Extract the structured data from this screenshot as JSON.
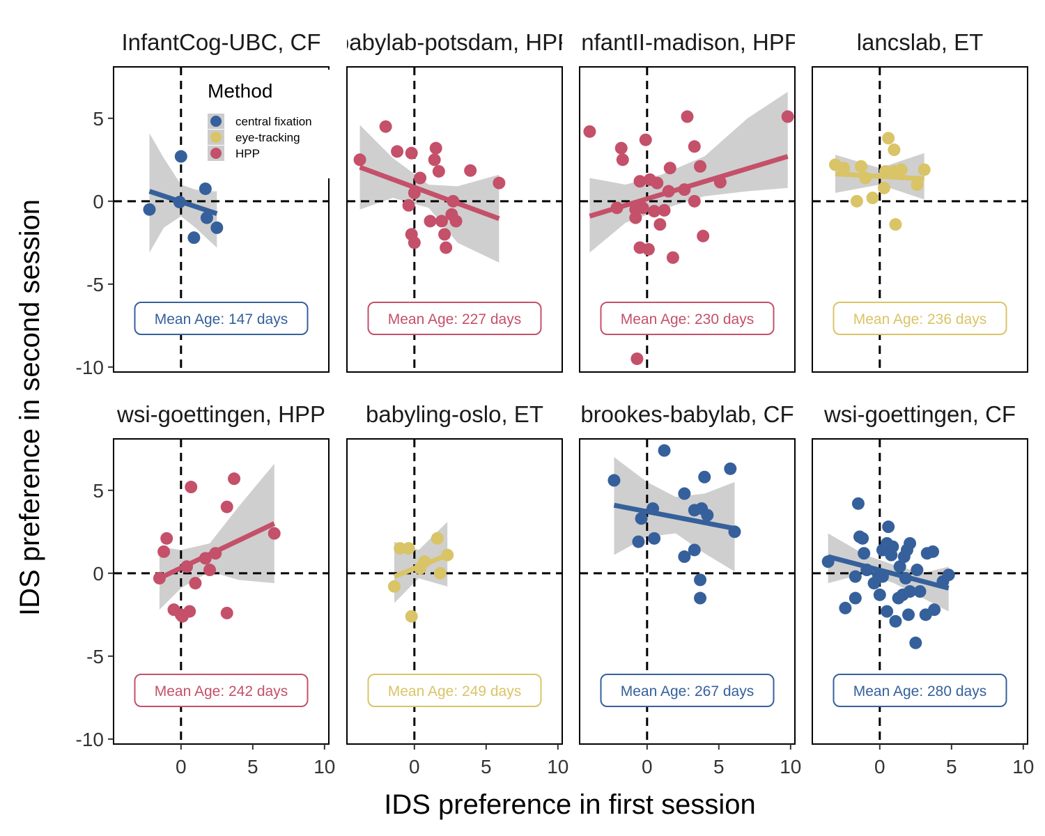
{
  "chart_data": {
    "type": "scatter",
    "xlabel": "IDS preference in first session",
    "ylabel": "IDS preference in second session",
    "xlim": [
      -4.7,
      10.3
    ],
    "ylim": [
      -10.3,
      8.1
    ],
    "xticks": [
      "0",
      "5",
      "10"
    ],
    "yticks": [
      "5",
      "0",
      "-5",
      "-10"
    ],
    "xtick_values": [
      0,
      5,
      10
    ],
    "ytick_values": [
      5,
      0,
      -5,
      -10
    ],
    "reference_lines": {
      "x": 0,
      "y": 0,
      "style": "dashed"
    },
    "grid": false,
    "legend": {
      "title": "Method",
      "placement": "top-left inside first panel",
      "entries": [
        {
          "label": "central fixation",
          "color": "#35609b"
        },
        {
          "label": "eye-tracking",
          "color": "#d9c467"
        },
        {
          "label": "HPP",
          "color": "#c4506a"
        }
      ]
    },
    "colors": {
      "CF": "#35609b",
      "ET": "#d9c467",
      "HPP": "#c4506a",
      "ribbon": "#cccccc"
    },
    "panels": [
      {
        "title": "InfantCog-UBC, CF",
        "method": "CF",
        "age_label": "Mean Age: 147 days",
        "points": [
          [
            -2.2,
            -0.5
          ],
          [
            0,
            2.7
          ],
          [
            -0.1,
            -0.05
          ],
          [
            0.9,
            -2.2
          ],
          [
            1.7,
            0.75
          ],
          [
            1.8,
            -1.0
          ],
          [
            2.5,
            -1.6
          ]
        ],
        "fit": {
          "x0": -2.2,
          "y0": 0.6,
          "x1": 2.5,
          "y1": -0.75
        },
        "ribbon": [
          [
            -2.2,
            4.1,
            -3.1
          ],
          [
            -1.2,
            2.6,
            -1.6
          ],
          [
            0,
            1.0,
            -0.9
          ],
          [
            1.0,
            0.7,
            -1.6
          ],
          [
            2.0,
            0.6,
            -2.4
          ],
          [
            2.5,
            0.6,
            -2.8
          ]
        ]
      },
      {
        "title": "babylab-potsdam, HPP",
        "method": "HPP",
        "age_label": "Mean Age: 227 days",
        "points": [
          [
            -3.8,
            2.5
          ],
          [
            -2.0,
            4.5
          ],
          [
            -1.2,
            3.0
          ],
          [
            -0.2,
            2.9
          ],
          [
            -0.4,
            -0.25
          ],
          [
            0.0,
            0.5
          ],
          [
            0.4,
            1.4
          ],
          [
            -0.2,
            -2.0
          ],
          [
            0.0,
            -2.5
          ],
          [
            1.1,
            -1.2
          ],
          [
            1.5,
            3.2
          ],
          [
            1.4,
            2.5
          ],
          [
            1.7,
            1.8
          ],
          [
            1.9,
            -1.2
          ],
          [
            2.1,
            -2.0
          ],
          [
            2.2,
            -2.8
          ],
          [
            2.6,
            -0.8
          ],
          [
            2.7,
            0.0
          ],
          [
            2.9,
            -1.2
          ],
          [
            3.9,
            1.85
          ],
          [
            5.9,
            1.1
          ]
        ],
        "fit": {
          "x0": -3.8,
          "y0": 2.05,
          "x1": 5.9,
          "y1": -1.05
        },
        "ribbon": [
          [
            -3.8,
            4.6,
            -0.5
          ],
          [
            -1.5,
            2.6,
            0.2
          ],
          [
            1.0,
            1.0,
            -0.4
          ],
          [
            3.0,
            0.9,
            -2.5
          ],
          [
            5.9,
            1.6,
            -3.7
          ]
        ]
      },
      {
        "title": "InfantII-madison, HPP",
        "method": "HPP",
        "age_label": "Mean Age: 230 days",
        "points": [
          [
            -4.0,
            4.2
          ],
          [
            -2.1,
            -0.4
          ],
          [
            -1.8,
            3.2
          ],
          [
            -1.7,
            2.5
          ],
          [
            -0.8,
            -0.5
          ],
          [
            -0.8,
            -1.0
          ],
          [
            -0.5,
            1.2
          ],
          [
            -0.5,
            -2.8
          ],
          [
            -0.3,
            -0.4
          ],
          [
            -0.1,
            3.7
          ],
          [
            0.2,
            1.3
          ],
          [
            0.1,
            -2.9
          ],
          [
            0.5,
            -0.6
          ],
          [
            0.7,
            1.1
          ],
          [
            0.9,
            -1.4
          ],
          [
            1.2,
            -0.55
          ],
          [
            1.5,
            0.6
          ],
          [
            1.6,
            2.0
          ],
          [
            1.8,
            -3.4
          ],
          [
            2.6,
            0.7
          ],
          [
            2.8,
            5.1
          ],
          [
            3.3,
            0.0
          ],
          [
            3.3,
            3.3
          ],
          [
            3.7,
            2.1
          ],
          [
            3.9,
            -2.1
          ],
          [
            5.1,
            1.15
          ],
          [
            9.8,
            5.1
          ],
          [
            -0.7,
            -9.5
          ]
        ],
        "fit": {
          "x0": -4.0,
          "y0": -0.9,
          "x1": 9.8,
          "y1": 2.7
        },
        "ribbon": [
          [
            -4.0,
            1.4,
            -3.1
          ],
          [
            -1.5,
            1.0,
            -1.3
          ],
          [
            1.0,
            1.6,
            -0.5
          ],
          [
            4.0,
            2.7,
            0.3
          ],
          [
            7.0,
            5.0,
            0.6
          ],
          [
            9.8,
            6.6,
            0.8
          ]
        ]
      },
      {
        "title": "lancslab, ET",
        "method": "ET",
        "age_label": "Mean Age: 236 days",
        "points": [
          [
            -3.1,
            2.2
          ],
          [
            -2.5,
            2.0
          ],
          [
            -1.6,
            -0.0
          ],
          [
            -1.3,
            2.1
          ],
          [
            -1.0,
            1.4
          ],
          [
            -0.5,
            0.2
          ],
          [
            0.3,
            0.8
          ],
          [
            0.4,
            1.8
          ],
          [
            0.6,
            3.8
          ],
          [
            1.0,
            1.8
          ],
          [
            1.0,
            3.1
          ],
          [
            1.1,
            -1.4
          ],
          [
            1.5,
            1.9
          ],
          [
            2.6,
            1.0
          ],
          [
            3.1,
            1.9
          ]
        ],
        "fit": {
          "x0": -3.1,
          "y0": 1.65,
          "x1": 3.1,
          "y1": 1.35
        },
        "ribbon": [
          [
            -3.1,
            2.8,
            0.5
          ],
          [
            0,
            2.0,
            1.0
          ],
          [
            3.1,
            2.9,
            0.1
          ]
        ]
      },
      {
        "title": "wsi-goettingen, HPP",
        "method": "HPP",
        "age_label": "Mean Age: 242 days",
        "points": [
          [
            -1.5,
            -0.3
          ],
          [
            -1.0,
            2.1
          ],
          [
            -1.2,
            1.3
          ],
          [
            -0.5,
            -2.2
          ],
          [
            0.0,
            -2.5
          ],
          [
            0.1,
            -2.6
          ],
          [
            0.4,
            0.4
          ],
          [
            0.6,
            -2.3
          ],
          [
            0.7,
            5.2
          ],
          [
            1.0,
            -0.6
          ],
          [
            1.7,
            0.9
          ],
          [
            2.0,
            0.2
          ],
          [
            2.4,
            1.2
          ],
          [
            3.2,
            4.0
          ],
          [
            3.2,
            -2.4
          ],
          [
            3.7,
            5.7
          ],
          [
            6.5,
            2.4
          ]
        ],
        "fit": {
          "x0": -1.5,
          "y0": -0.3,
          "x1": 6.5,
          "y1": 3.0
        },
        "ribbon": [
          [
            -1.5,
            1.6,
            -2.2
          ],
          [
            0,
            1.4,
            -0.9
          ],
          [
            2.0,
            1.8,
            0.1
          ],
          [
            4.0,
            4.0,
            -0.4
          ],
          [
            6.5,
            6.6,
            -0.6
          ]
        ]
      },
      {
        "title": "babyling-oslo, ET",
        "method": "ET",
        "age_label": "Mean Age: 249 days",
        "points": [
          [
            -1.4,
            -0.8
          ],
          [
            -1.0,
            1.5
          ],
          [
            -0.4,
            1.5
          ],
          [
            -0.2,
            -2.6
          ],
          [
            0.4,
            0.3
          ],
          [
            0.7,
            0.7
          ],
          [
            1.6,
            2.1
          ],
          [
            1.8,
            0.0
          ],
          [
            2.3,
            1.1
          ]
        ],
        "fit": {
          "x0": -1.4,
          "y0": -0.2,
          "x1": 2.3,
          "y1": 1.1
        },
        "ribbon": [
          [
            -1.4,
            1.9,
            -1.8
          ],
          [
            0.3,
            1.4,
            -0.3
          ],
          [
            2.3,
            3.1,
            -0.8
          ]
        ]
      },
      {
        "title": "brookes-babylab, CF",
        "method": "CF",
        "age_label": "Mean Age: 267 days",
        "points": [
          [
            -2.3,
            5.6
          ],
          [
            -0.6,
            1.9
          ],
          [
            -0.4,
            3.3
          ],
          [
            0.4,
            3.9
          ],
          [
            0.5,
            2.1
          ],
          [
            1.2,
            7.4
          ],
          [
            2.6,
            4.8
          ],
          [
            2.6,
            1.0
          ],
          [
            3.3,
            1.4
          ],
          [
            3.3,
            3.8
          ],
          [
            3.7,
            -0.4
          ],
          [
            3.7,
            -1.5
          ],
          [
            3.8,
            3.9
          ],
          [
            4.0,
            5.8
          ],
          [
            4.2,
            3.5
          ],
          [
            5.8,
            6.3
          ],
          [
            6.1,
            2.5
          ]
        ],
        "fit": {
          "x0": -2.3,
          "y0": 4.1,
          "x1": 6.1,
          "y1": 2.7
        },
        "ribbon": [
          [
            -2.3,
            7.0,
            1.1
          ],
          [
            0,
            5.5,
            2.2
          ],
          [
            2.0,
            4.6,
            2.4
          ],
          [
            4.0,
            4.8,
            1.2
          ],
          [
            6.1,
            5.5,
            0.1
          ]
        ]
      },
      {
        "title": "wsi-goettingen, CF",
        "method": "CF",
        "age_label": "Mean Age: 280 days",
        "points": [
          [
            -3.6,
            0.7
          ],
          [
            -2.4,
            -2.1
          ],
          [
            -1.7,
            -0.2
          ],
          [
            -1.7,
            -1.5
          ],
          [
            -1.5,
            4.2
          ],
          [
            -1.4,
            2.2
          ],
          [
            -1.2,
            2.1
          ],
          [
            -1.1,
            1.2
          ],
          [
            -0.9,
            0.2
          ],
          [
            -0.4,
            -0.6
          ],
          [
            0,
            -1.3
          ],
          [
            0.2,
            1.4
          ],
          [
            0.2,
            -0.2
          ],
          [
            0.5,
            1.8
          ],
          [
            0.5,
            -2.3
          ],
          [
            0.6,
            2.8
          ],
          [
            0.8,
            1.1
          ],
          [
            0.9,
            1.6
          ],
          [
            1.1,
            -2.9
          ],
          [
            1.3,
            -1.5
          ],
          [
            1.4,
            0.4
          ],
          [
            1.6,
            -1.3
          ],
          [
            1.7,
            1.0
          ],
          [
            1.8,
            -0.3
          ],
          [
            1.9,
            1.4
          ],
          [
            2.0,
            -2.5
          ],
          [
            2.1,
            -1.1
          ],
          [
            2.1,
            1.8
          ],
          [
            2.5,
            -4.2
          ],
          [
            2.6,
            0.2
          ],
          [
            2.8,
            -1.1
          ],
          [
            3.2,
            -2.5
          ],
          [
            3.3,
            1.2
          ],
          [
            3.7,
            1.3
          ],
          [
            3.8,
            -2.2
          ],
          [
            4.4,
            -0.5
          ],
          [
            4.8,
            -0.1
          ],
          [
            -0.1,
            -0.1
          ]
        ],
        "fit": {
          "x0": -3.6,
          "y0": 1.0,
          "x1": 4.8,
          "y1": -0.9
        },
        "ribbon": [
          [
            -3.6,
            2.4,
            -0.6
          ],
          [
            -1.0,
            1.1,
            -0.0
          ],
          [
            1.0,
            0.5,
            -0.6
          ],
          [
            3.0,
            0.0,
            -1.5
          ],
          [
            4.8,
            0.4,
            -2.3
          ]
        ]
      }
    ]
  }
}
